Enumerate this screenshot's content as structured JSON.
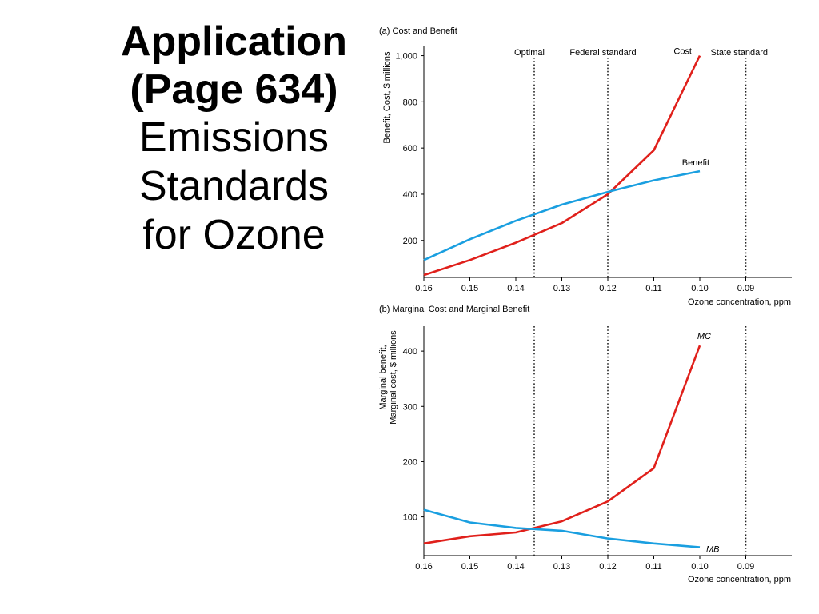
{
  "slide": {
    "title_line1": "Application",
    "title_line2": "(Page 634)",
    "subtitle_line1": "Emissions",
    "subtitle_line2": "Standards",
    "subtitle_line3": "for Ozone"
  },
  "colors": {
    "cost": "#e0201b",
    "benefit": "#1a9fe0",
    "axis": "#000000"
  },
  "chart_data": [
    {
      "type": "line",
      "title": "(a) Cost and Benefit",
      "xlabel": "Ozone concentration, ppm",
      "ylabel": "Benefit, Cost, $ millions",
      "x_ticks": [
        "0.16",
        "0.15",
        "0.14",
        "0.13",
        "0.12",
        "0.11",
        "0.10",
        "0.09"
      ],
      "y_ticks": [
        "200",
        "400",
        "600",
        "800",
        "1,000"
      ],
      "xlim": [
        0.16,
        0.08
      ],
      "ylim": [
        40,
        1040
      ],
      "reference_lines": [
        {
          "x": 0.136,
          "label": "Optimal"
        },
        {
          "x": 0.12,
          "label": "Federal standard"
        },
        {
          "x": 0.09,
          "label": "State standard"
        }
      ],
      "series": [
        {
          "name": "Cost",
          "x": [
            0.16,
            0.15,
            0.14,
            0.13,
            0.12,
            0.11,
            0.1
          ],
          "y": [
            50,
            115,
            190,
            275,
            400,
            590,
            1000
          ]
        },
        {
          "name": "Benefit",
          "x": [
            0.16,
            0.15,
            0.14,
            0.13,
            0.12,
            0.11,
            0.1
          ],
          "y": [
            115,
            205,
            285,
            355,
            410,
            460,
            500
          ]
        }
      ]
    },
    {
      "type": "line",
      "title": "(b) Marginal Cost and Marginal Benefit",
      "xlabel": "Ozone concentration, ppm",
      "ylabel_line1": "Marginal benefit,",
      "ylabel_line2": "Marginal cost, $ millions",
      "x_ticks": [
        "0.16",
        "0.15",
        "0.14",
        "0.13",
        "0.12",
        "0.11",
        "0.10",
        "0.09"
      ],
      "y_ticks": [
        "100",
        "200",
        "300",
        "400"
      ],
      "xlim": [
        0.16,
        0.08
      ],
      "ylim": [
        30,
        445
      ],
      "reference_lines": [
        {
          "x": 0.136
        },
        {
          "x": 0.12
        },
        {
          "x": 0.09
        }
      ],
      "series": [
        {
          "name": "MC",
          "x": [
            0.16,
            0.15,
            0.14,
            0.13,
            0.12,
            0.11,
            0.1
          ],
          "y": [
            52,
            65,
            72,
            92,
            128,
            188,
            410
          ]
        },
        {
          "name": "MB",
          "x": [
            0.16,
            0.15,
            0.14,
            0.13,
            0.12,
            0.11,
            0.1
          ],
          "y": [
            113,
            90,
            80,
            75,
            61,
            52,
            45
          ]
        }
      ]
    }
  ]
}
